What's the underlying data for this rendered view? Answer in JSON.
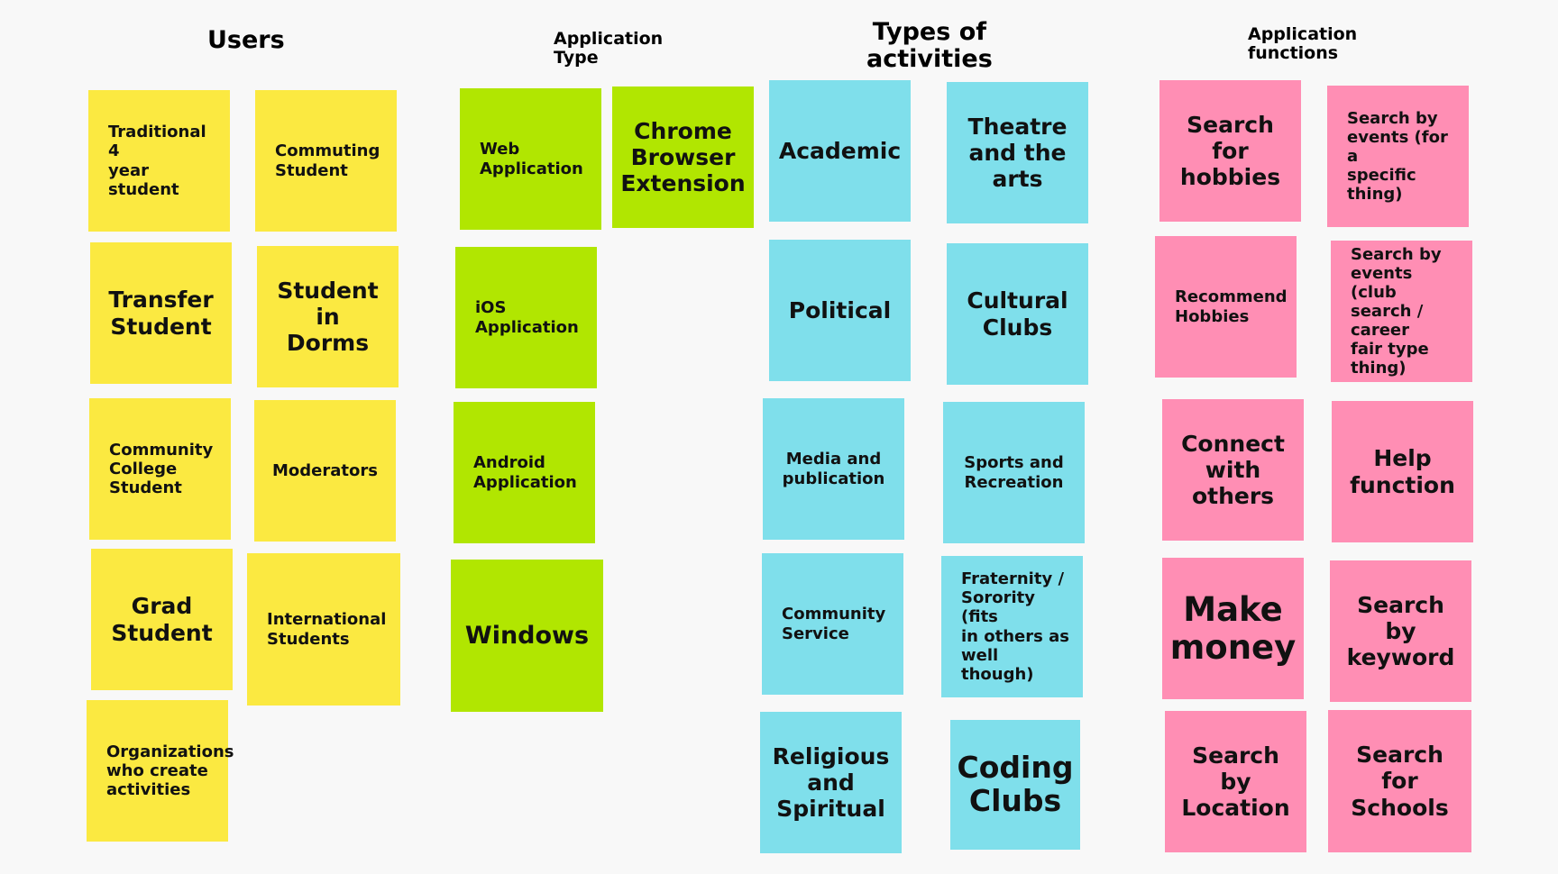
{
  "headings": {
    "users": "Users",
    "application_type": "Application\nType",
    "types_of_activities": "Types of\nactivities",
    "application_functions": "Application\nfunctions"
  },
  "colors": {
    "users": "#fbe941",
    "application_type": "#b1e601",
    "types_of_activities": "#7fdfeb",
    "application_functions": "#ff8eb4",
    "background": "#f8f8f8"
  },
  "notes": {
    "users": [
      "Traditional 4\nyear student",
      "Commuting\nStudent",
      "Transfer\nStudent",
      "Student in\nDorms",
      "Community\nCollege\nStudent",
      "Moderators",
      "Grad\nStudent",
      "International\nStudents",
      "Organizations\nwho create\nactivities"
    ],
    "application_type": [
      "Web\nApplication",
      "Chrome\nBrowser\nExtension",
      "iOS\nApplication",
      "Android\nApplication",
      "Windows"
    ],
    "types_of_activities": [
      "Academic",
      "Theatre\nand the\narts",
      "Political",
      "Cultural\nClubs",
      "Media and\npublication",
      "Sports and\nRecreation",
      "Community\nService",
      "Fraternity /\nSorority (fits\nin others as\nwell though)",
      "Religious\nand\nSpiritual",
      "Coding\nClubs"
    ],
    "application_functions": [
      "Search for\nhobbies",
      "Search by\nevents (for a\nspecific thing)",
      "Recommend\nHobbies",
      "Search by\nevents (club\nsearch / career\nfair type\nthing)",
      "Connect\nwith\nothers",
      "Help\nfunction",
      "Make\nmoney",
      "Search by\nkeyword",
      "Search by\nLocation",
      "Search for\nSchools"
    ]
  }
}
